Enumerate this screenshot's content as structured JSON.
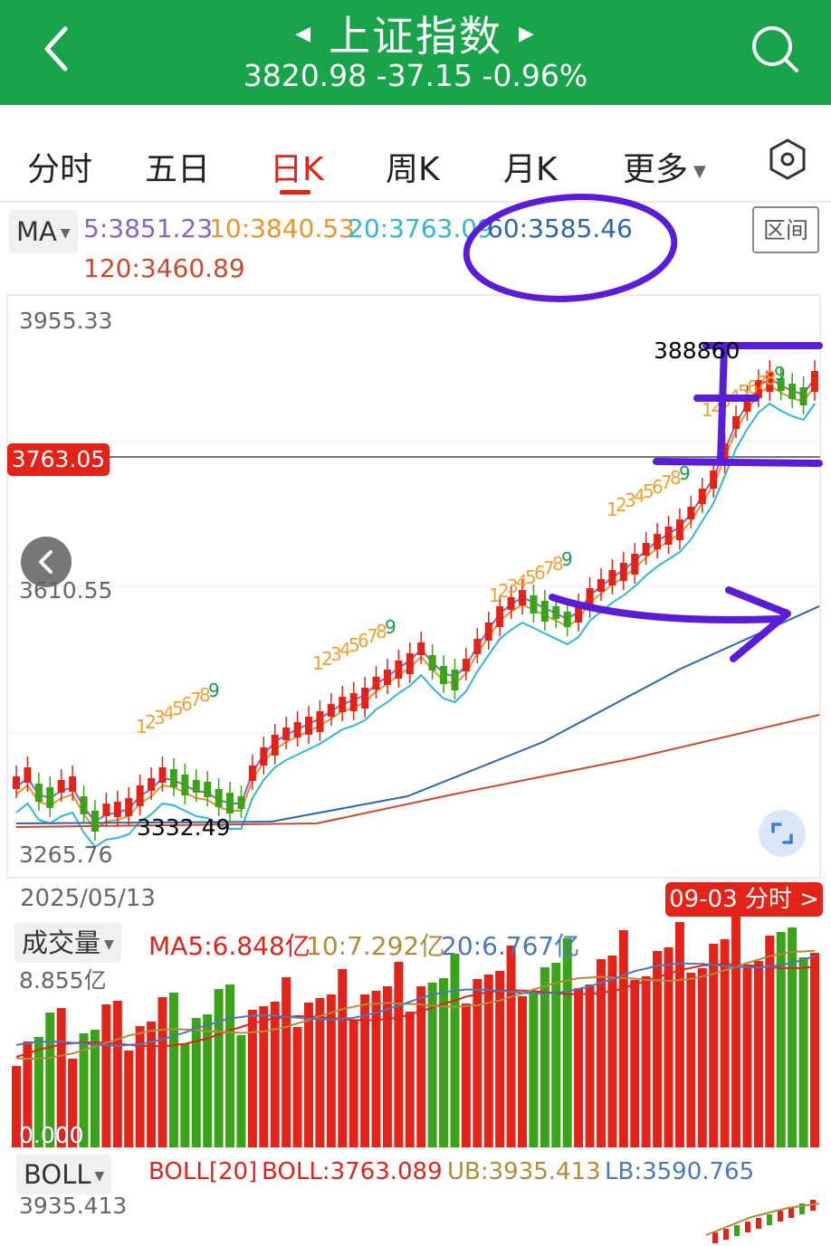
{
  "header": {
    "title": "上证指数",
    "price_line": "3820.98 -37.15 -0.96%",
    "back_icon": "chevron-left-icon",
    "prev_icon": "triangle-left-icon",
    "next_icon": "triangle-right-icon",
    "search_icon": "search-icon",
    "bg_color": "#19a34a"
  },
  "tabs": [
    {
      "label": "分时"
    },
    {
      "label": "五日"
    },
    {
      "label": "日K",
      "active": true
    },
    {
      "label": "周K"
    },
    {
      "label": "月K"
    },
    {
      "label": "更多"
    }
  ],
  "settings_icon": "hexagon-settings-icon",
  "ma": {
    "selector": "MA",
    "ma5": "5:3851.23",
    "ma10": "10:3840.53",
    "ma20": "20:3763.09",
    "ma60": "60:3585.46",
    "ma120": "120:3460.89",
    "colors": {
      "ma5": "#8a63c8",
      "ma10": "#e8942c",
      "ma20": "#2fb6d8",
      "ma60": "#2c66a8",
      "ma120": "#c94a2a"
    }
  },
  "range_button": "区间",
  "price_axis": {
    "top": "3955.33",
    "mid": "3610.55",
    "bottom": "3265.76",
    "current_tag": "3763.05"
  },
  "annotations": {
    "high": "3888.60",
    "low": "3332.49",
    "high_partial": "3888",
    "high_partial_tail": "60"
  },
  "sequence_counts": [
    "1",
    "2",
    "3",
    "4",
    "5",
    "6",
    "7",
    "8",
    "9"
  ],
  "date_start": "2025/05/13",
  "intraday_button": "09-03 分时 >",
  "volume": {
    "selector": "成交量",
    "ma5": "MA5:6.848亿",
    "ma10": "10:7.292亿",
    "ma20": "20:6.767亿",
    "top_label": "8.855亿",
    "bottom_label": "0.000"
  },
  "boll": {
    "selector": "BOLL",
    "name": "BOLL[20]",
    "mid": "BOLL:3763.089",
    "ub": "UB:3935.413",
    "lb": "LB:3590.765",
    "top_label": "3935.413"
  },
  "colors": {
    "up": "#e2231a",
    "down": "#3aa31a",
    "accent": "#e2231a",
    "annotation": "#5a1cd6"
  }
}
